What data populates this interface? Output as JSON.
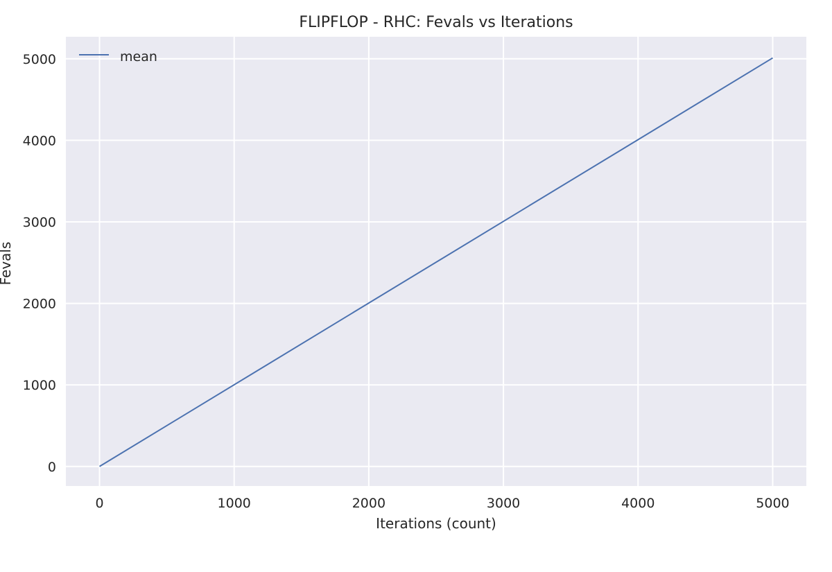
{
  "chart_data": {
    "type": "line",
    "title": "FLIPFLOP - RHC: Fevals vs Iterations",
    "xlabel": "Iterations (count)",
    "ylabel": "Fevals",
    "xlim": [
      -250,
      5250
    ],
    "ylim": [
      -240,
      5270
    ],
    "xticks": [
      0,
      1000,
      2000,
      3000,
      4000,
      5000
    ],
    "yticks": [
      0,
      1000,
      2000,
      3000,
      4000,
      5000
    ],
    "grid": true,
    "legend_position": "top-left",
    "series": [
      {
        "name": "mean",
        "color": "#4c72b0",
        "x": [
          0,
          5000
        ],
        "y": [
          0,
          5010
        ]
      }
    ]
  },
  "colors": {
    "plot_background": "#eaeaf2",
    "grid": "#ffffff"
  }
}
